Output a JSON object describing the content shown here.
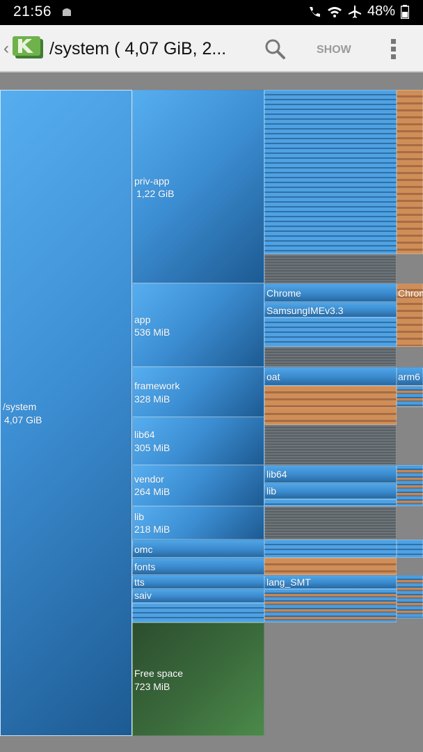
{
  "status_bar": {
    "time": "21:56",
    "battery": "48%",
    "icons": [
      "android-icon",
      "call-icon",
      "wifi-icon",
      "airplane-icon",
      "battery-icon"
    ]
  },
  "toolbar": {
    "title": "/system ( 4,07 GiB, 2...",
    "show_label": "SHOW",
    "icons": [
      "back-chevron-icon",
      "app-logo",
      "search-icon",
      "overflow-menu-icon"
    ]
  },
  "treemap": {
    "root": {
      "name": "/system",
      "size": "4,07 GiB"
    },
    "folders": [
      {
        "name": "priv-app",
        "size": "1,22 GiB"
      },
      {
        "name": "app",
        "size": "536 MiB"
      },
      {
        "name": "framework",
        "size": "328 MiB"
      },
      {
        "name": "lib64",
        "size": "305 MiB"
      },
      {
        "name": "vendor",
        "size": "264 MiB"
      },
      {
        "name": "lib",
        "size": "218 MiB"
      },
      {
        "name": "omc",
        "size": ""
      },
      {
        "name": "fonts",
        "size": ""
      },
      {
        "name": "tts",
        "size": ""
      },
      {
        "name": "saiv",
        "size": ""
      }
    ],
    "free_space": {
      "name": "Free space",
      "size": "723 MiB"
    },
    "subfolders": {
      "chrome": "Chrome",
      "samsungime": "SamsungIMEv3.3",
      "oat": "oat",
      "vendor_lib64": "lib64",
      "vendor_lib": "lib",
      "lang_smt": "lang_SMT",
      "chrome_right": "Chrom",
      "arm_right": "arm6"
    },
    "colors": {
      "folder": "#3d8fd4",
      "free": "#3b6b3c",
      "file": "#c98652",
      "other": "#6d7479"
    }
  }
}
